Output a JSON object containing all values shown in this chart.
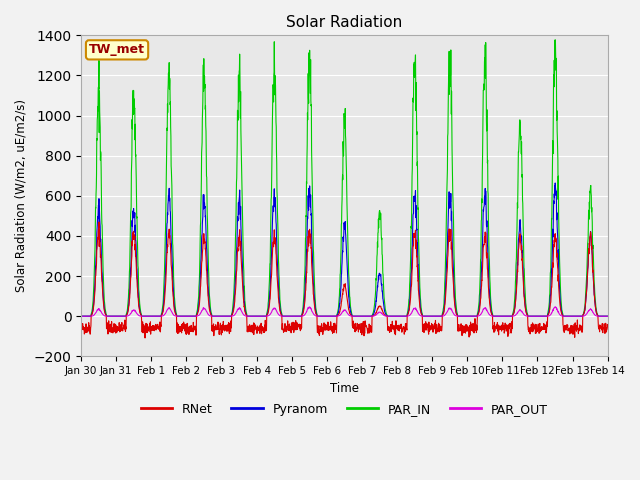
{
  "title": "Solar Radiation",
  "ylabel": "Solar Radiation (W/m2, uE/m2/s)",
  "xlabel": "Time",
  "site_label": "TW_met",
  "ylim": [
    -200,
    1400
  ],
  "yticks": [
    -200,
    0,
    200,
    400,
    600,
    800,
    1000,
    1200,
    1400
  ],
  "x_tick_labels": [
    "Jan 30",
    "Jan 31",
    "Feb 1",
    "Feb 2",
    "Feb 3",
    "Feb 4",
    "Feb 5",
    "Feb 6",
    "Feb 7",
    "Feb 8",
    "Feb 9",
    "Feb 10",
    "Feb 11",
    "Feb 12",
    "Feb 13",
    "Feb 14"
  ],
  "n_days": 15,
  "colors": {
    "RNet": "#dd0000",
    "Pyranom": "#0000dd",
    "PAR_IN": "#00cc00",
    "PAR_OUT": "#dd00dd"
  },
  "par_in_peaks": [
    1120,
    1090,
    1200,
    1245,
    1210,
    1240,
    1285,
    950,
    510,
    1285,
    1270,
    1295,
    980,
    1340,
    620
  ],
  "pyranom_peaks": [
    530,
    520,
    600,
    590,
    585,
    600,
    630,
    440,
    210,
    610,
    600,
    605,
    460,
    645,
    400
  ],
  "rnet_peaks": [
    420,
    410,
    410,
    400,
    400,
    400,
    420,
    150,
    50,
    420,
    420,
    400,
    400,
    400,
    400
  ],
  "par_out_peaks": [
    35,
    30,
    40,
    40,
    40,
    40,
    45,
    30,
    20,
    40,
    40,
    40,
    30,
    45,
    35
  ],
  "rnet_night": -60,
  "background_color": "#e8e8e8",
  "grid_color": "#ffffff",
  "fig_facecolor": "#f2f2f2",
  "site_box_facecolor": "#ffffcc",
  "site_box_edgecolor": "#cc8800",
  "site_text_color": "#990000"
}
